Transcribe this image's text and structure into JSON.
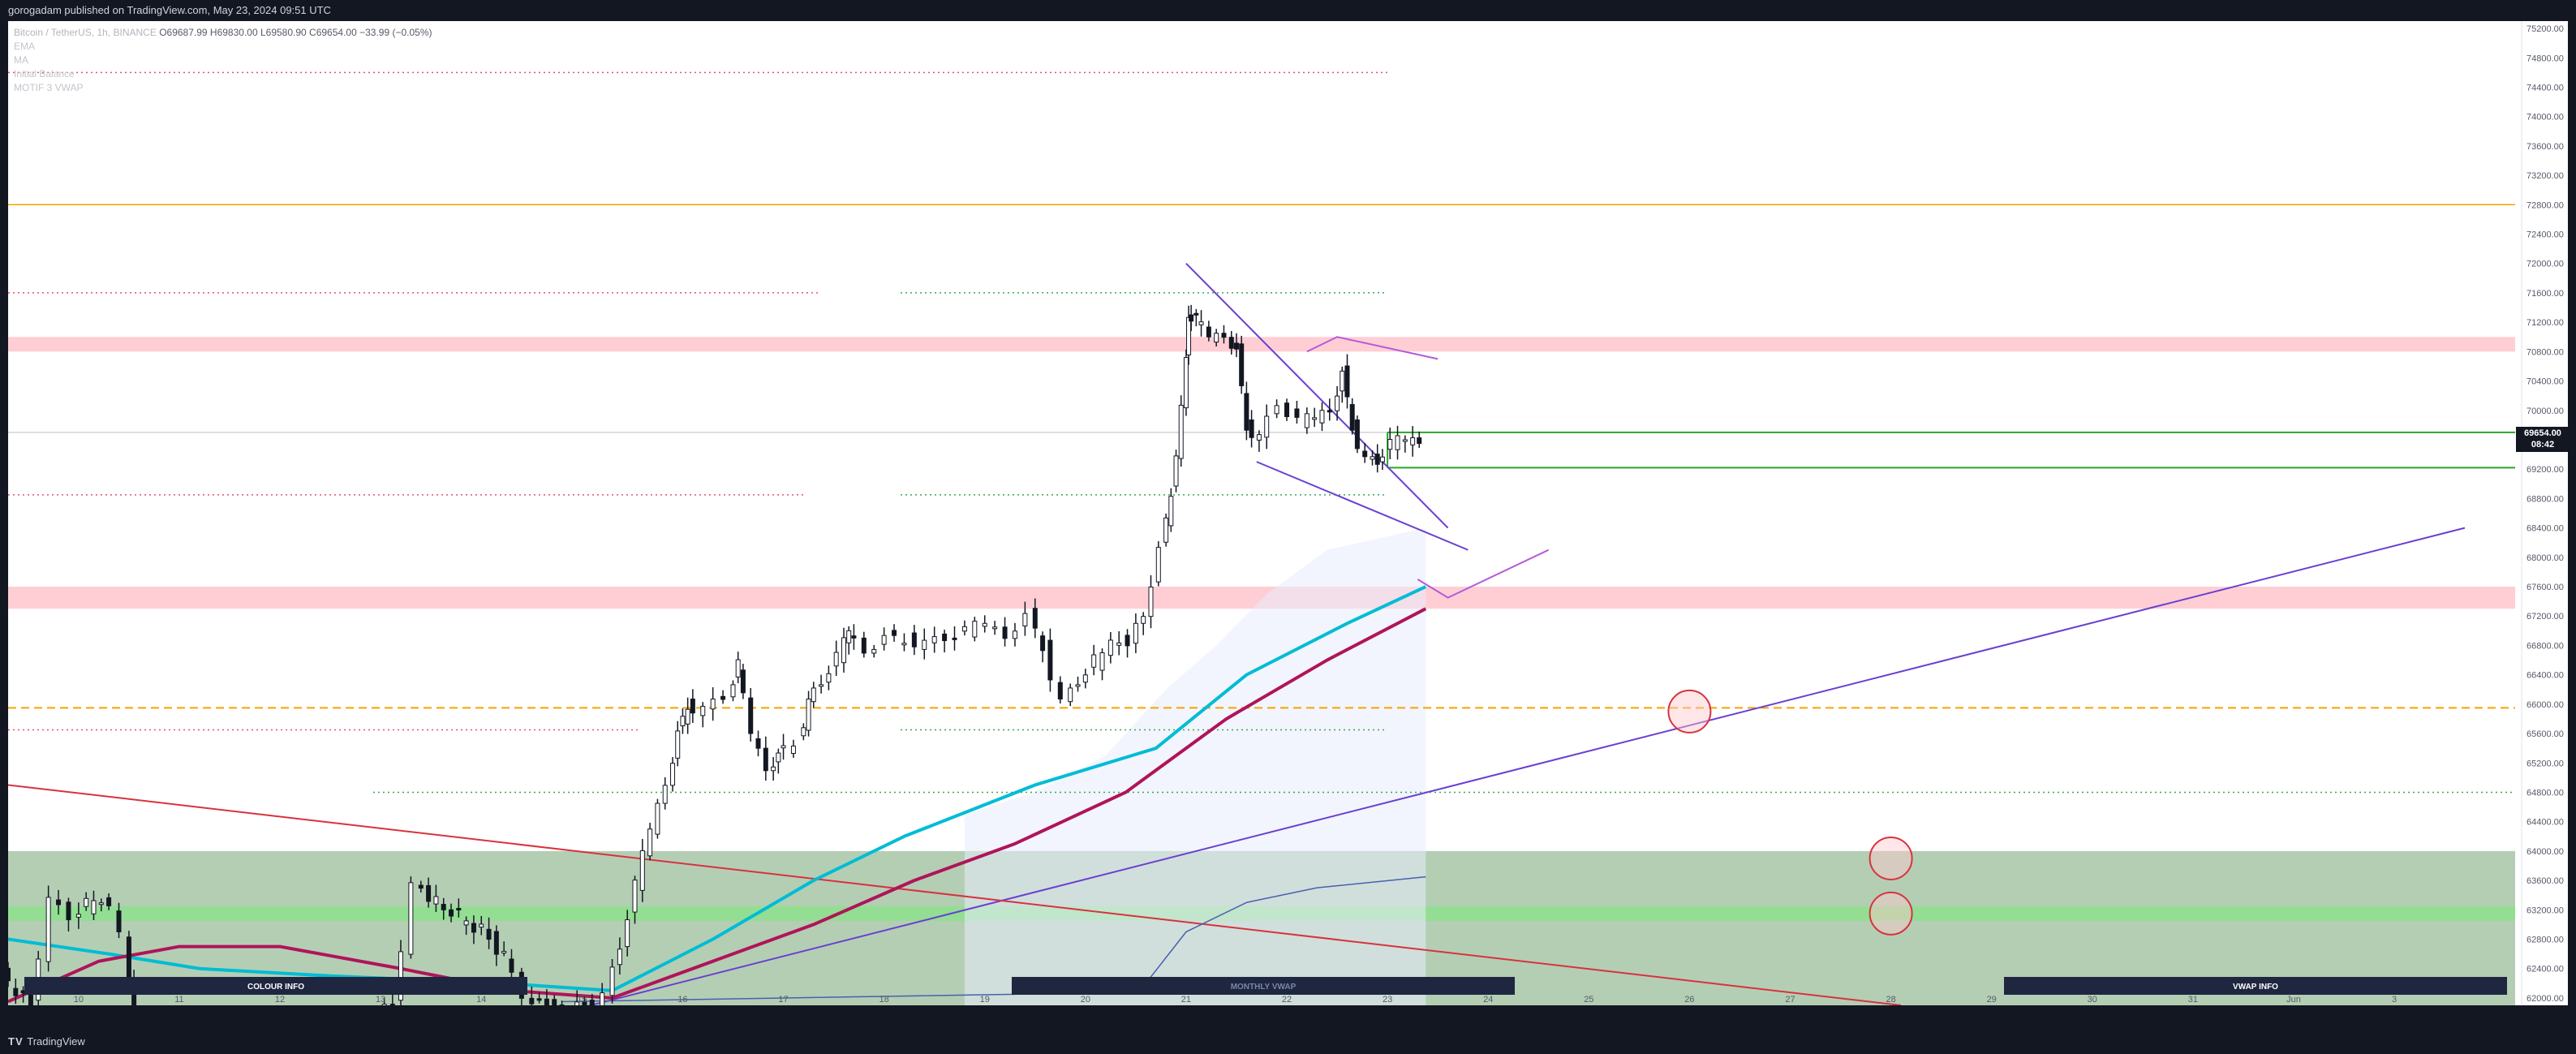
{
  "header": {
    "publish_text": "gorogadam published on TradingView.com, May 23, 2024 09:51 UTC"
  },
  "legend": {
    "symbol": "Bitcoin / TetherUS, 1h, BINANCE",
    "ohlc": "O69687.99  H69830.00  L69580.90  C69654.00  −33.99 (−0.05%)",
    "indicators": [
      "EMA",
      "MA",
      "Initial Balance",
      "MOTIF 3 VWAP"
    ]
  },
  "price_tag": {
    "price": "69654.00",
    "countdown": "08:42"
  },
  "footer": {
    "brand": "TradingView"
  },
  "chart_data": {
    "type": "line",
    "title": "",
    "symbol": "BTCUSDT",
    "timeframe": "1h",
    "exchange": "BINANCE",
    "ohlc": {
      "open": 69687.99,
      "high": 69830.0,
      "low": 69580.9,
      "close": 69654.0,
      "change": -33.99,
      "change_pct": -0.05
    },
    "x_tick_labels": [
      "10",
      "11",
      "12",
      "13",
      "14",
      "15",
      "16",
      "17",
      "18",
      "19",
      "20",
      "21",
      "22",
      "23",
      "24",
      "25",
      "26",
      "27",
      "28",
      "29",
      "30",
      "31",
      "Jun",
      "3"
    ],
    "y_tick_labels": [
      "75200.00",
      "74800.00",
      "74400.00",
      "74000.00",
      "73600.00",
      "73200.00",
      "72800.00",
      "72400.00",
      "72000.00",
      "71600.00",
      "71200.00",
      "70800.00",
      "70400.00",
      "70000.00",
      "69200.00",
      "68800.00",
      "68400.00",
      "68000.00",
      "67600.00",
      "67200.00",
      "66800.00",
      "66400.00",
      "66000.00",
      "65600.00",
      "65200.00",
      "64800.00",
      "64400.00",
      "64000.00",
      "63600.00",
      "63200.00",
      "62800.00",
      "62400.00",
      "62000.00"
    ],
    "ylim": [
      61900,
      75300
    ],
    "x_range_days": [
      9.3,
      34.2
    ],
    "price_series": [
      [
        9.3,
        62300
      ],
      [
        9.6,
        61900
      ],
      [
        9.8,
        63300
      ],
      [
        10.0,
        63100
      ],
      [
        10.3,
        63400
      ],
      [
        10.5,
        62900
      ],
      [
        10.6,
        61600
      ],
      [
        12.3,
        61300
      ],
      [
        13.2,
        61900
      ],
      [
        13.4,
        63500
      ],
      [
        13.7,
        63200
      ],
      [
        14.0,
        63000
      ],
      [
        14.3,
        62600
      ],
      [
        14.5,
        62100
      ],
      [
        14.8,
        61800
      ],
      [
        15.1,
        61900
      ],
      [
        15.3,
        62000
      ],
      [
        15.45,
        62700
      ],
      [
        15.6,
        63500
      ],
      [
        15.75,
        64300
      ],
      [
        15.9,
        65000
      ],
      [
        16.0,
        65600
      ],
      [
        16.1,
        66000
      ],
      [
        16.3,
        65900
      ],
      [
        16.5,
        66100
      ],
      [
        16.6,
        66500
      ],
      [
        16.75,
        65600
      ],
      [
        16.9,
        65200
      ],
      [
        17.0,
        65300
      ],
      [
        17.2,
        65500
      ],
      [
        17.3,
        66000
      ],
      [
        17.45,
        66300
      ],
      [
        17.6,
        66600
      ],
      [
        17.7,
        67000
      ],
      [
        17.9,
        66800
      ],
      [
        18.1,
        66900
      ],
      [
        18.3,
        66900
      ],
      [
        18.5,
        66800
      ],
      [
        18.7,
        66900
      ],
      [
        18.9,
        66950
      ],
      [
        19.1,
        67100
      ],
      [
        19.3,
        67000
      ],
      [
        19.5,
        67200
      ],
      [
        19.65,
        66800
      ],
      [
        19.85,
        66000
      ],
      [
        20.0,
        66300
      ],
      [
        20.25,
        66700
      ],
      [
        20.5,
        66900
      ],
      [
        20.65,
        67300
      ],
      [
        20.8,
        68100
      ],
      [
        20.9,
        68900
      ],
      [
        21.0,
        70000
      ],
      [
        21.05,
        71300
      ],
      [
        21.15,
        71200
      ],
      [
        21.3,
        71000
      ],
      [
        21.45,
        71100
      ],
      [
        21.55,
        70800
      ],
      [
        21.65,
        69800
      ],
      [
        21.8,
        69600
      ],
      [
        22.0,
        70100
      ],
      [
        22.2,
        69800
      ],
      [
        22.35,
        69900
      ],
      [
        22.5,
        70100
      ],
      [
        22.6,
        70500
      ],
      [
        22.7,
        69800
      ],
      [
        22.85,
        69300
      ],
      [
        22.95,
        69300
      ],
      [
        23.1,
        69500
      ],
      [
        23.25,
        69600
      ],
      [
        23.38,
        69654
      ]
    ],
    "emas": {
      "cyan_ema": [
        [
          9.3,
          62800
        ],
        [
          10.3,
          62600
        ],
        [
          11.2,
          62400
        ],
        [
          12.5,
          62300
        ],
        [
          14.2,
          62200
        ],
        [
          15.3,
          62100
        ],
        [
          16.3,
          62800
        ],
        [
          17.3,
          63600
        ],
        [
          18.2,
          64200
        ],
        [
          19.5,
          64900
        ],
        [
          20.7,
          65400
        ],
        [
          21.6,
          66400
        ],
        [
          22.6,
          67100
        ],
        [
          23.38,
          67600
        ]
      ],
      "magenta_ma": [
        [
          9.3,
          61950
        ],
        [
          10.2,
          62500
        ],
        [
          11.0,
          62700
        ],
        [
          12.0,
          62700
        ],
        [
          13.2,
          62400
        ],
        [
          14.3,
          62100
        ],
        [
          15.3,
          62000
        ],
        [
          16.3,
          62500
        ],
        [
          17.3,
          63000
        ],
        [
          18.3,
          63600
        ],
        [
          19.3,
          64100
        ],
        [
          20.4,
          64800
        ],
        [
          21.4,
          65800
        ],
        [
          22.4,
          66600
        ],
        [
          23.38,
          67300
        ]
      ]
    },
    "drawings": {
      "horizontal_lines": [
        {
          "label": "orange solid",
          "price": 72800,
          "color": "#f5a300"
        },
        {
          "label": "orange dashed",
          "price": 65950,
          "color": "#f5a300"
        },
        {
          "label": "gray current",
          "price": 69700,
          "color": "#b2b5be"
        }
      ],
      "zones": [
        {
          "price_top": 71000,
          "price_bottom": 70800,
          "color": "#ffc9cf"
        },
        {
          "price_top": 67600,
          "price_bottom": 67300,
          "color": "#ffc9cf"
        },
        {
          "price_top": 64000,
          "price_bottom": 61900,
          "color": "#9bbd9b"
        },
        {
          "price_top": 63250,
          "price_bottom": 63050,
          "color": "#8fe08f"
        }
      ],
      "green_box": {
        "price_top": 69700,
        "price_bottom": 69220
      },
      "trendlines": [
        {
          "name": "wedge upper",
          "p1": [
            21.0,
            72000
          ],
          "p2": [
            23.6,
            68400
          ]
        },
        {
          "name": "wedge lower",
          "p1": [
            21.7,
            69300
          ],
          "p2": [
            23.8,
            68100
          ]
        },
        {
          "name": "long support",
          "p1": [
            14.8,
            61800
          ],
          "p2": [
            33.7,
            68400
          ]
        },
        {
          "name": "long downtrend",
          "p1": [
            9.3,
            64900
          ],
          "p2": [
            28.1,
            61900
          ]
        }
      ],
      "circles": [
        [
          26.0,
          65900
        ],
        [
          28.0,
          63900
        ],
        [
          28.0,
          63150
        ]
      ]
    },
    "info_boxes": [
      "COLOUR INFO",
      "MONTHLY VWAP",
      "VWAP INFO"
    ],
    "grid": false
  },
  "theme": {
    "bg": "#131722",
    "up": "#ffffff",
    "down": "#131722",
    "wedge": "#6a3fd1",
    "cyan": "#00bcd4",
    "magenta": "#b0145a"
  }
}
